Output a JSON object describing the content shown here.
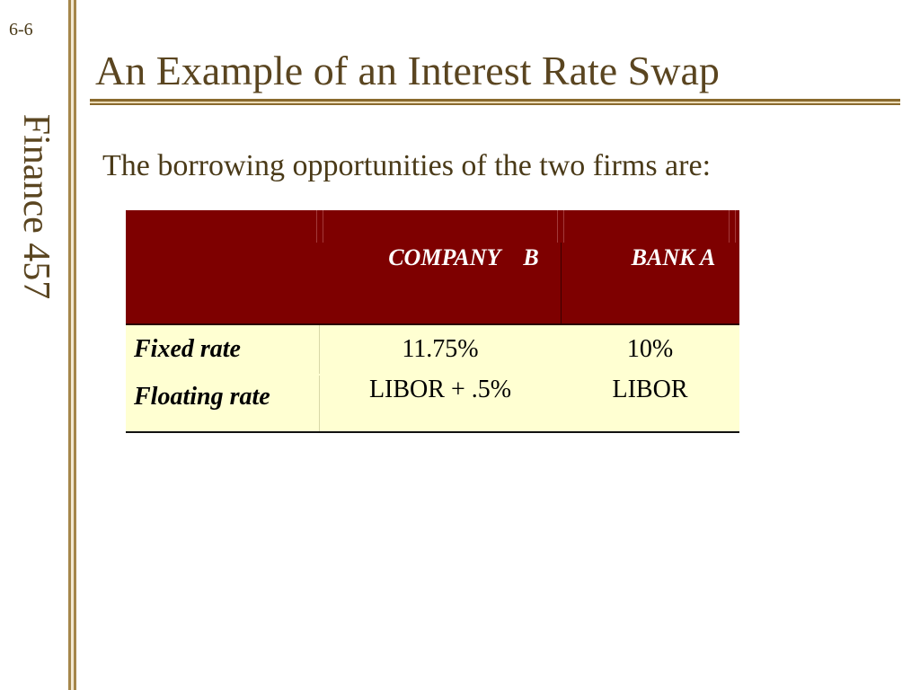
{
  "slide": {
    "number": "6-6",
    "course_label": "Finance 457",
    "title": "An Example of an Interest Rate Swap",
    "subtitle": "The borrowing opportunities of the two firms are:"
  },
  "table": {
    "headers": [
      "",
      "COMPANY    B",
      "BANK A"
    ],
    "rows": [
      {
        "label": "Fixed rate",
        "company_b": "11.75%",
        "bank_a": "10%"
      },
      {
        "label": "Floating rate",
        "company_b": "LIBOR + .5%",
        "bank_a": "LIBOR"
      }
    ]
  },
  "colors": {
    "header_background": "#7e0000",
    "body_background": "#ffffd2",
    "title_text": "#5a4520",
    "rule": "#a5864a"
  }
}
